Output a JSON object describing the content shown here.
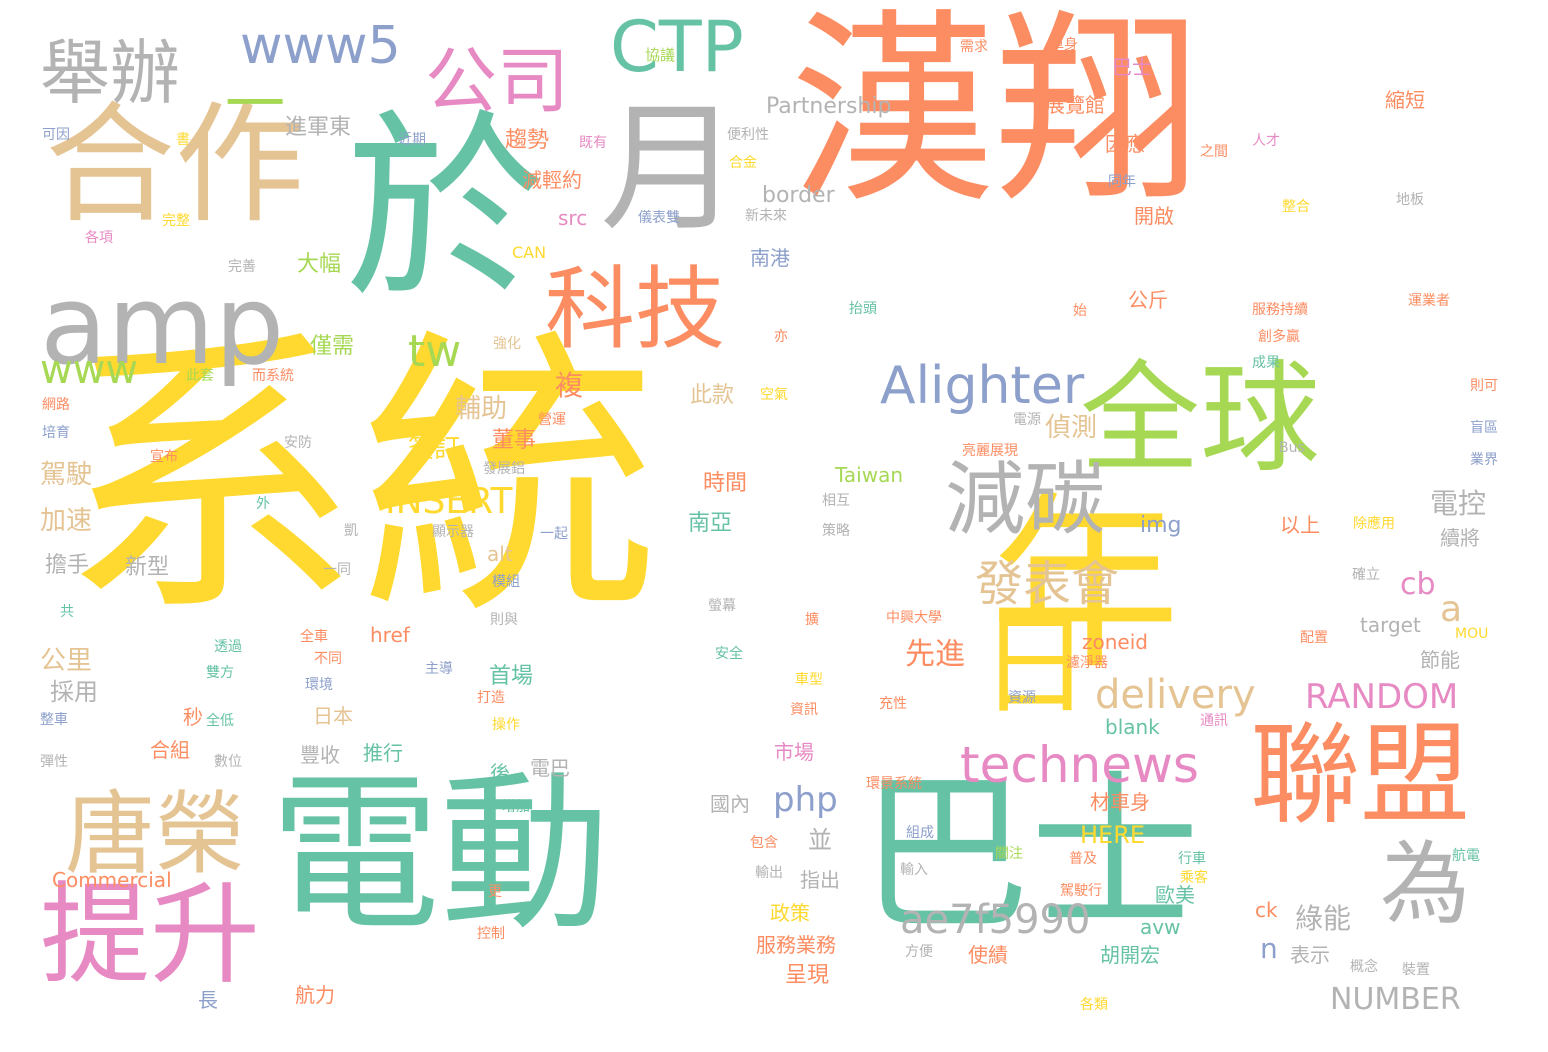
{
  "word_cloud": {
    "words": [
      {
        "text": "系統",
        "color": "#ffd92f"
      },
      {
        "text": "漢翔",
        "color": "#fc8d62"
      },
      {
        "text": "電動",
        "color": "#66c2a5"
      },
      {
        "text": "巴士",
        "color": "#66c2a5"
      },
      {
        "text": "於",
        "color": "#66c2a5"
      },
      {
        "text": "年",
        "color": "#ffd92f"
      },
      {
        "text": "合作",
        "color": "#e5c494"
      },
      {
        "text": "月",
        "color": "#b3b3b3"
      },
      {
        "text": "全球",
        "color": "#a6d854"
      },
      {
        "text": "聯盟",
        "color": "#fc8d62"
      },
      {
        "text": "amp",
        "color": "#b3b3b3"
      },
      {
        "text": "提升",
        "color": "#e78ac3"
      },
      {
        "text": "科技",
        "color": "#fc8d62"
      },
      {
        "text": "唐榮",
        "color": "#e5c494"
      },
      {
        "text": "日",
        "color": "#ffd92f"
      },
      {
        "text": "為",
        "color": "#b3b3b3"
      },
      {
        "text": "減碳",
        "color": "#b3b3b3"
      },
      {
        "text": "舉辦",
        "color": "#b3b3b3"
      },
      {
        "text": "公司",
        "color": "#e78ac3"
      },
      {
        "text": "CTP",
        "color": "#66c2a5"
      },
      {
        "text": "一",
        "color": "#a6d854"
      },
      {
        "text": "www5",
        "color": "#8da0cb"
      },
      {
        "text": "Alighter",
        "color": "#8da0cb"
      },
      {
        "text": "technews",
        "color": "#e78ac3"
      },
      {
        "text": "發表會",
        "color": "#e5c494"
      },
      {
        "text": "ae7f5990",
        "color": "#b3b3b3"
      },
      {
        "text": "delivery",
        "color": "#e5c494"
      },
      {
        "text": "www",
        "color": "#a6d854"
      },
      {
        "text": "tw",
        "color": "#a6d854"
      },
      {
        "text": "INSERT",
        "color": "#ffd92f"
      },
      {
        "text": "RANDOM",
        "color": "#e78ac3"
      },
      {
        "text": "php",
        "color": "#8da0cb"
      },
      {
        "text": "a",
        "color": "#e5c494"
      },
      {
        "text": "cb",
        "color": "#e78ac3"
      },
      {
        "text": "電控",
        "color": "#b3b3b3"
      },
      {
        "text": "NUMBER",
        "color": "#b3b3b3"
      },
      {
        "text": "先進",
        "color": "#fc8d62"
      },
      {
        "text": "綠能",
        "color": "#b3b3b3"
      },
      {
        "text": "n",
        "color": "#8da0cb"
      },
      {
        "text": "複",
        "color": "#fc8d62"
      },
      {
        "text": "輔助",
        "color": "#e5c494"
      },
      {
        "text": "簽訂",
        "color": "#ffd92f"
      },
      {
        "text": "駕駛",
        "color": "#e5c494"
      },
      {
        "text": "加速",
        "color": "#e5c494"
      },
      {
        "text": "偵測",
        "color": "#e5c494"
      },
      {
        "text": "董事",
        "color": "#fc8d62"
      },
      {
        "text": "公里",
        "color": "#e5c494"
      },
      {
        "text": "採用",
        "color": "#b3b3b3"
      },
      {
        "text": "擔手",
        "color": "#b3b3b3"
      },
      {
        "text": "新型",
        "color": "#b3b3b3"
      },
      {
        "text": "進軍東",
        "color": "#b3b3b3"
      },
      {
        "text": "趨勢",
        "color": "#fc8d62"
      },
      {
        "text": "減輕約",
        "color": "#fc8d62"
      },
      {
        "text": "大幅",
        "color": "#a6d854"
      },
      {
        "text": "僅需",
        "color": "#a6d854"
      },
      {
        "text": "南港",
        "color": "#8da0cb"
      },
      {
        "text": "border",
        "color": "#b3b3b3"
      },
      {
        "text": "Partnership",
        "color": "#b3b3b3"
      },
      {
        "text": "展覽館",
        "color": "#fc8d62"
      },
      {
        "text": "巴士",
        "color": "#e78ac3"
      },
      {
        "text": "縮短",
        "color": "#fc8d62"
      },
      {
        "text": "因應",
        "color": "#fc8d62"
      },
      {
        "text": "開啟",
        "color": "#fc8d62"
      },
      {
        "text": "公斤",
        "color": "#fc8d62"
      },
      {
        "text": "src",
        "color": "#e78ac3"
      },
      {
        "text": "CAN",
        "color": "#ffd92f"
      },
      {
        "text": "此款",
        "color": "#e5c494"
      },
      {
        "text": "時間",
        "color": "#fc8d62"
      },
      {
        "text": "南亞",
        "color": "#66c2a5"
      },
      {
        "text": "Taiwan",
        "color": "#a6d854"
      },
      {
        "text": "img",
        "color": "#8da0cb"
      },
      {
        "text": "以上",
        "color": "#fc8d62"
      },
      {
        "text": "續將",
        "color": "#b3b3b3"
      },
      {
        "text": "節能",
        "color": "#b3b3b3"
      },
      {
        "text": "target",
        "color": "#b3b3b3"
      },
      {
        "text": "zoneid",
        "color": "#fc8d62"
      },
      {
        "text": "href",
        "color": "#fc8d62"
      },
      {
        "text": "alt",
        "color": "#e5c494"
      },
      {
        "text": "首場",
        "color": "#66c2a5"
      },
      {
        "text": "秒",
        "color": "#fc8d62"
      },
      {
        "text": "合組",
        "color": "#fc8d62"
      },
      {
        "text": "日本",
        "color": "#e5c494"
      },
      {
        "text": "豐收",
        "color": "#b3b3b3"
      },
      {
        "text": "推行",
        "color": "#66c2a5"
      },
      {
        "text": "電巴",
        "color": "#b3b3b3"
      },
      {
        "text": "後",
        "color": "#66c2a5"
      },
      {
        "text": "國內",
        "color": "#b3b3b3"
      },
      {
        "text": "市場",
        "color": "#e78ac3"
      },
      {
        "text": "並",
        "color": "#b3b3b3"
      },
      {
        "text": "指出",
        "color": "#b3b3b3"
      },
      {
        "text": "政策",
        "color": "#ffd92f"
      },
      {
        "text": "服務業務",
        "color": "#fc8d62"
      },
      {
        "text": "呈現",
        "color": "#fc8d62"
      },
      {
        "text": "blank",
        "color": "#66c2a5"
      },
      {
        "text": "HERE",
        "color": "#ffd92f"
      },
      {
        "text": "歐美",
        "color": "#66c2a5"
      },
      {
        "text": "材車身",
        "color": "#fc8d62"
      },
      {
        "text": "avw",
        "color": "#66c2a5"
      },
      {
        "text": "胡開宏",
        "color": "#66c2a5"
      },
      {
        "text": "使績",
        "color": "#fc8d62"
      },
      {
        "text": "表示",
        "color": "#b3b3b3"
      },
      {
        "text": "ck",
        "color": "#fc8d62"
      },
      {
        "text": "Commercial",
        "color": "#fc8d62"
      },
      {
        "text": "航力",
        "color": "#fc8d62"
      },
      {
        "text": "長",
        "color": "#8da0cb"
      },
      {
        "text": "需求",
        "color": "#fc8d62"
      },
      {
        "text": "車身",
        "color": "#fc8d62"
      },
      {
        "text": "協議",
        "color": "#a6d854"
      },
      {
        "text": "可因",
        "color": "#8da0cb"
      },
      {
        "text": "書",
        "color": "#ffd92f"
      },
      {
        "text": "近期",
        "color": "#8da0cb"
      },
      {
        "text": "便利性",
        "color": "#b3b3b3"
      },
      {
        "text": "既有",
        "color": "#e78ac3"
      },
      {
        "text": "合金",
        "color": "#ffd92f"
      },
      {
        "text": "人才",
        "color": "#e78ac3"
      },
      {
        "text": "之間",
        "color": "#fc8d62"
      },
      {
        "text": "同年",
        "color": "#8da0cb"
      },
      {
        "text": "整合",
        "color": "#ffd92f"
      },
      {
        "text": "地板",
        "color": "#b3b3b3"
      },
      {
        "text": "完整",
        "color": "#ffd92f"
      },
      {
        "text": "各項",
        "color": "#e78ac3"
      },
      {
        "text": "儀表雙",
        "color": "#8da0cb"
      },
      {
        "text": "新未來",
        "color": "#b3b3b3"
      },
      {
        "text": "完善",
        "color": "#b3b3b3"
      },
      {
        "text": "抬頭",
        "color": "#66c2a5"
      },
      {
        "text": "始",
        "color": "#fc8d62"
      },
      {
        "text": "服務持續",
        "color": "#fc8d62"
      },
      {
        "text": "運業者",
        "color": "#fc8d62"
      },
      {
        "text": "創多贏",
        "color": "#fc8d62"
      },
      {
        "text": "強化",
        "color": "#e5c494"
      },
      {
        "text": "亦",
        "color": "#fc8d62"
      },
      {
        "text": "成果",
        "color": "#66c2a5"
      },
      {
        "text": "則可",
        "color": "#fc8d62"
      },
      {
        "text": "此套",
        "color": "#a6d854"
      },
      {
        "text": "而系統",
        "color": "#fc8d62"
      },
      {
        "text": "網路",
        "color": "#fc8d62"
      },
      {
        "text": "空氣",
        "color": "#ffd92f"
      },
      {
        "text": "營運",
        "color": "#fc8d62"
      },
      {
        "text": "電源",
        "color": "#b3b3b3"
      },
      {
        "text": "培育",
        "color": "#8da0cb"
      },
      {
        "text": "安防",
        "color": "#b3b3b3"
      },
      {
        "text": "亮麗展現",
        "color": "#fc8d62"
      },
      {
        "text": "宣布",
        "color": "#fc8d62"
      },
      {
        "text": "發展鋁",
        "color": "#b3b3b3"
      },
      {
        "text": "Bus",
        "color": "#b3b3b3"
      },
      {
        "text": "盲區",
        "color": "#8da0cb"
      },
      {
        "text": "業界",
        "color": "#8da0cb"
      },
      {
        "text": "外",
        "color": "#66c2a5"
      },
      {
        "text": "相互",
        "color": "#b3b3b3"
      },
      {
        "text": "策略",
        "color": "#b3b3b3"
      },
      {
        "text": "除應用",
        "color": "#ffd92f"
      },
      {
        "text": "凱",
        "color": "#b3b3b3"
      },
      {
        "text": "顯示器",
        "color": "#b3b3b3"
      },
      {
        "text": "一起",
        "color": "#8da0cb"
      },
      {
        "text": "一同",
        "color": "#b3b3b3"
      },
      {
        "text": "模組",
        "color": "#8da0cb"
      },
      {
        "text": "確立",
        "color": "#b3b3b3"
      },
      {
        "text": "共",
        "color": "#66c2a5"
      },
      {
        "text": "螢幕",
        "color": "#b3b3b3"
      },
      {
        "text": "中興大學",
        "color": "#fc8d62"
      },
      {
        "text": "則與",
        "color": "#b3b3b3"
      },
      {
        "text": "擴",
        "color": "#fc8d62"
      },
      {
        "text": "MOU",
        "color": "#ffd92f"
      },
      {
        "text": "配置",
        "color": "#fc8d62"
      },
      {
        "text": "透過",
        "color": "#66c2a5"
      },
      {
        "text": "全車",
        "color": "#fc8d62"
      },
      {
        "text": "不同",
        "color": "#fc8d62"
      },
      {
        "text": "安全",
        "color": "#66c2a5"
      },
      {
        "text": "濾淨器",
        "color": "#fc8d62"
      },
      {
        "text": "雙方",
        "color": "#66c2a5"
      },
      {
        "text": "環境",
        "color": "#8da0cb"
      },
      {
        "text": "主導",
        "color": "#8da0cb"
      },
      {
        "text": "車型",
        "color": "#ffd92f"
      },
      {
        "text": "打造",
        "color": "#fc8d62"
      },
      {
        "text": "資源",
        "color": "#8da0cb"
      },
      {
        "text": "整車",
        "color": "#8da0cb"
      },
      {
        "text": "全低",
        "color": "#66c2a5"
      },
      {
        "text": "操作",
        "color": "#ffd92f"
      },
      {
        "text": "資訊",
        "color": "#fc8d62"
      },
      {
        "text": "充性",
        "color": "#fc8d62"
      },
      {
        "text": "通訊",
        "color": "#e78ac3"
      },
      {
        "text": "彈性",
        "color": "#b3b3b3"
      },
      {
        "text": "數位",
        "color": "#b3b3b3"
      },
      {
        "text": "增加",
        "color": "#66c2a5"
      },
      {
        "text": "環景系統",
        "color": "#fc8d62"
      },
      {
        "text": "組成",
        "color": "#8da0cb"
      },
      {
        "text": "包含",
        "color": "#fc8d62"
      },
      {
        "text": "關注",
        "color": "#a6d854"
      },
      {
        "text": "普及",
        "color": "#fc8d62"
      },
      {
        "text": "行車",
        "color": "#66c2a5"
      },
      {
        "text": "航電",
        "color": "#66c2a5"
      },
      {
        "text": "乘客",
        "color": "#ffd92f"
      },
      {
        "text": "輸入",
        "color": "#b3b3b3"
      },
      {
        "text": "輸出",
        "color": "#b3b3b3"
      },
      {
        "text": "駕駛行",
        "color": "#fc8d62"
      },
      {
        "text": "更",
        "color": "#fc8d62"
      },
      {
        "text": "控制",
        "color": "#fc8d62"
      },
      {
        "text": "方便",
        "color": "#b3b3b3"
      },
      {
        "text": "各類",
        "color": "#ffd92f"
      },
      {
        "text": "概念",
        "color": "#b3b3b3"
      },
      {
        "text": "裝置",
        "color": "#b3b3b3"
      }
    ]
  }
}
